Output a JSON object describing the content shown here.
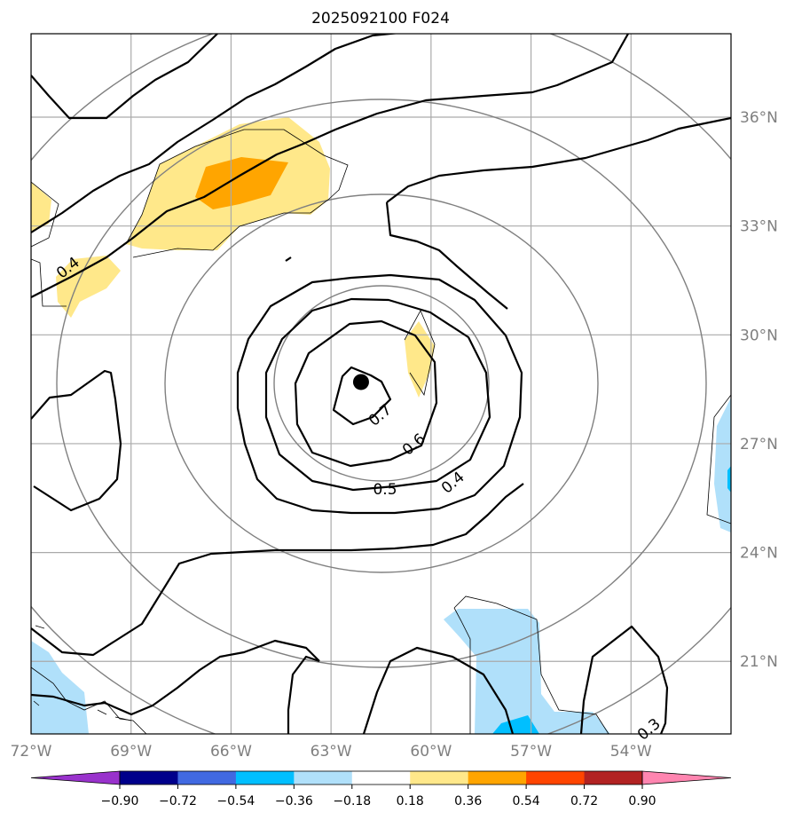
{
  "chart_data": {
    "type": "contour-map",
    "title": "2025092100 F024",
    "projection": "lat-lon",
    "xlim": [
      -72,
      -51
    ],
    "ylim": [
      19,
      38.3
    ],
    "x_ticks": [
      {
        "value": -72,
        "label": "72°W"
      },
      {
        "value": -69,
        "label": "69°W"
      },
      {
        "value": -66,
        "label": "66°W"
      },
      {
        "value": -63,
        "label": "63°W"
      },
      {
        "value": -60,
        "label": "60°W"
      },
      {
        "value": -57,
        "label": "57°W"
      },
      {
        "value": -54,
        "label": "54°W"
      }
    ],
    "y_ticks": [
      {
        "value": 36,
        "label": "36°N"
      },
      {
        "value": 33,
        "label": "33°N"
      },
      {
        "value": 30,
        "label": "30°N"
      },
      {
        "value": 27,
        "label": "27°N"
      },
      {
        "value": 24,
        "label": "24°N"
      },
      {
        "value": 21,
        "label": "21°N"
      }
    ],
    "grid": true,
    "center_marker": {
      "lon": -62.1,
      "lat": 28.7
    },
    "range_rings_deg": [
      3,
      6,
      9,
      12
    ],
    "contour_levels_labeled": [
      {
        "text": "0.4",
        "lon": -71.0,
        "lat": 32.0
      },
      {
        "text": "0.7",
        "lon": -62.0,
        "lat": 27.8
      },
      {
        "text": "0.6",
        "lon": -60.8,
        "lat": 26.9
      },
      {
        "text": "0.5",
        "lon": -62.0,
        "lat": 25.8
      },
      {
        "text": "0.4",
        "lon": -59.7,
        "lat": 26.0
      },
      {
        "text": "0.3",
        "lon": -54.5,
        "lat": 19.2
      }
    ],
    "colorbar": {
      "levels": [
        -0.9,
        -0.72,
        -0.54,
        -0.36,
        -0.18,
        0.18,
        0.36,
        0.54,
        0.72,
        0.9
      ],
      "tick_labels": [
        "−0.90",
        "−0.72",
        "−0.54",
        "−0.36",
        "−0.18",
        "0.18",
        "0.36",
        "0.54",
        "0.72",
        "0.90"
      ],
      "colors": [
        "#9932cc",
        "#00008b",
        "#4169e1",
        "#00bfff",
        "#b0e0fa",
        "#ffffff",
        "#ffe88a",
        "#ffa500",
        "#ff4500",
        "#b22222",
        "#ff85b0"
      ],
      "extend": "both"
    }
  }
}
